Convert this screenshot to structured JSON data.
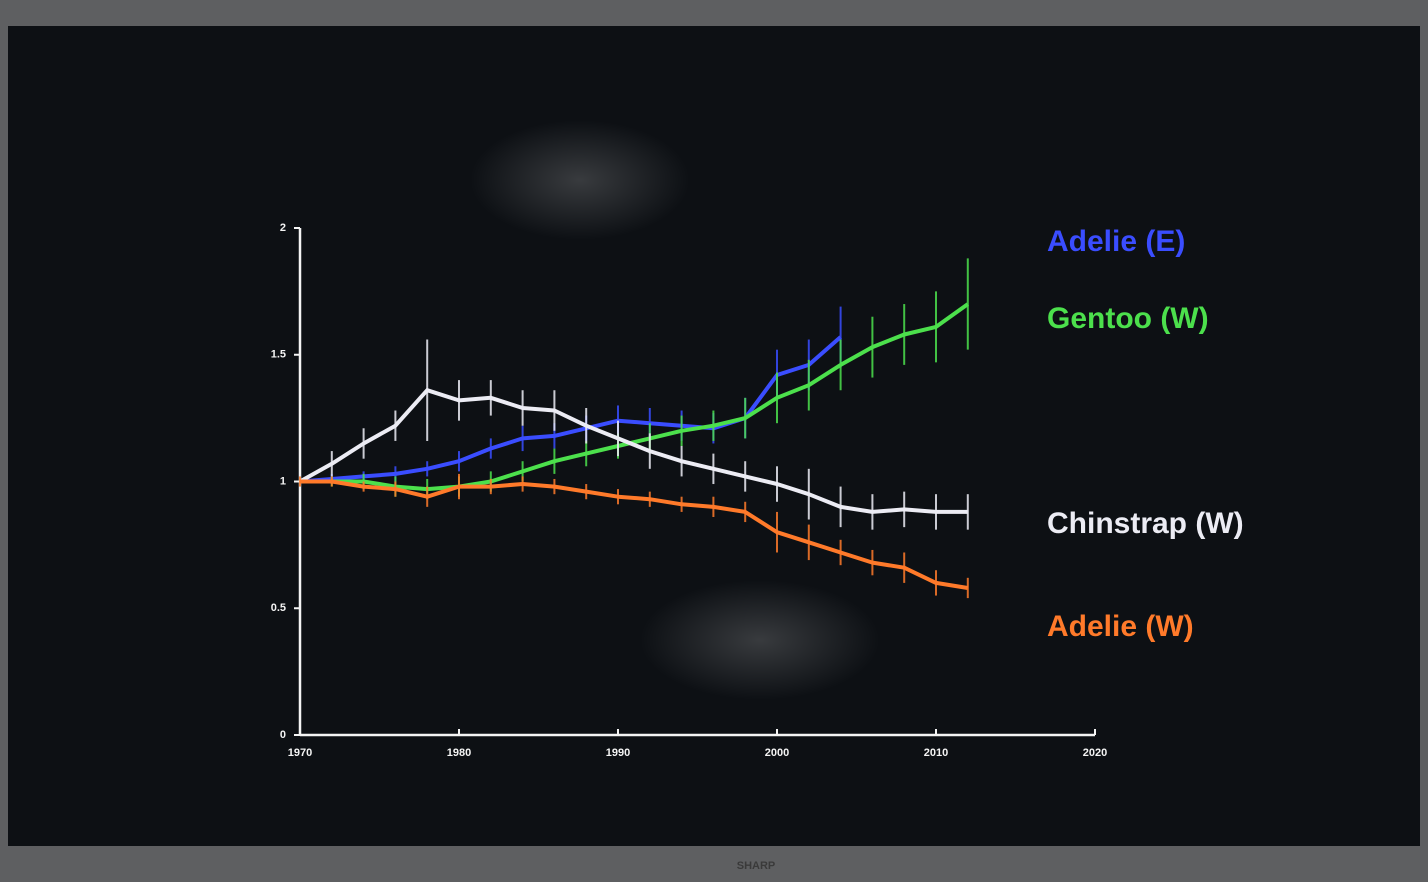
{
  "chart_data": {
    "type": "line",
    "x": [
      1970,
      1972,
      1974,
      1976,
      1978,
      1980,
      1982,
      1984,
      1986,
      1988,
      1990,
      1992,
      1994,
      1996,
      1998,
      2000,
      2002,
      2004,
      2006,
      2008,
      2010,
      2012
    ],
    "series": [
      {
        "name": "Adelie (E)",
        "color": "#3a4dff",
        "values": [
          1.0,
          1.01,
          1.02,
          1.03,
          1.05,
          1.08,
          1.13,
          1.17,
          1.18,
          1.21,
          1.24,
          1.23,
          1.22,
          1.21,
          1.25,
          1.42,
          1.46,
          1.57,
          null,
          null,
          null,
          null
        ],
        "errors": [
          0.02,
          0.02,
          0.02,
          0.03,
          0.03,
          0.04,
          0.04,
          0.05,
          0.05,
          0.05,
          0.06,
          0.06,
          0.06,
          0.06,
          0.08,
          0.1,
          0.1,
          0.12,
          null,
          null,
          null,
          null
        ]
      },
      {
        "name": "Gentoo (W)",
        "color": "#4ce04c",
        "values": [
          1.0,
          1.0,
          1.0,
          0.98,
          0.97,
          0.98,
          1.0,
          1.04,
          1.08,
          1.11,
          1.14,
          1.17,
          1.2,
          1.22,
          1.25,
          1.33,
          1.38,
          1.46,
          1.53,
          1.58,
          1.61,
          1.7
        ],
        "errors": [
          0.02,
          0.02,
          0.03,
          0.04,
          0.04,
          0.04,
          0.04,
          0.04,
          0.05,
          0.05,
          0.05,
          0.06,
          0.06,
          0.06,
          0.08,
          0.1,
          0.1,
          0.1,
          0.12,
          0.12,
          0.14,
          0.18
        ]
      },
      {
        "name": "Chinstrap (W)",
        "color": "#ececf4",
        "values": [
          1.0,
          1.07,
          1.15,
          1.22,
          1.36,
          1.32,
          1.33,
          1.29,
          1.28,
          1.22,
          1.17,
          1.12,
          1.08,
          1.05,
          1.02,
          0.99,
          0.95,
          0.9,
          0.88,
          0.89,
          0.88,
          0.88
        ],
        "errors": [
          0.03,
          0.05,
          0.06,
          0.06,
          0.2,
          0.08,
          0.07,
          0.07,
          0.08,
          0.07,
          0.07,
          0.07,
          0.06,
          0.06,
          0.06,
          0.07,
          0.1,
          0.08,
          0.07,
          0.07,
          0.07,
          0.07
        ]
      },
      {
        "name": "Adelie (W)",
        "color": "#ff7a2a",
        "values": [
          1.0,
          1.0,
          0.98,
          0.97,
          0.94,
          0.98,
          0.98,
          0.99,
          0.98,
          0.96,
          0.94,
          0.93,
          0.91,
          0.9,
          0.88,
          0.8,
          0.76,
          0.72,
          0.68,
          0.66,
          0.6,
          0.58
        ],
        "errors": [
          0.02,
          0.02,
          0.02,
          0.03,
          0.04,
          0.05,
          0.03,
          0.03,
          0.03,
          0.03,
          0.03,
          0.03,
          0.03,
          0.04,
          0.04,
          0.08,
          0.07,
          0.05,
          0.05,
          0.06,
          0.05,
          0.04
        ]
      }
    ],
    "xlim": [
      1970,
      2020
    ],
    "xticks": [
      1970,
      1980,
      1990,
      2000,
      2010,
      2020
    ],
    "ylim": [
      0,
      2
    ],
    "yticks": [
      0,
      0.5,
      1,
      1.5,
      2
    ]
  },
  "tv": {
    "brand": "SHARP"
  }
}
